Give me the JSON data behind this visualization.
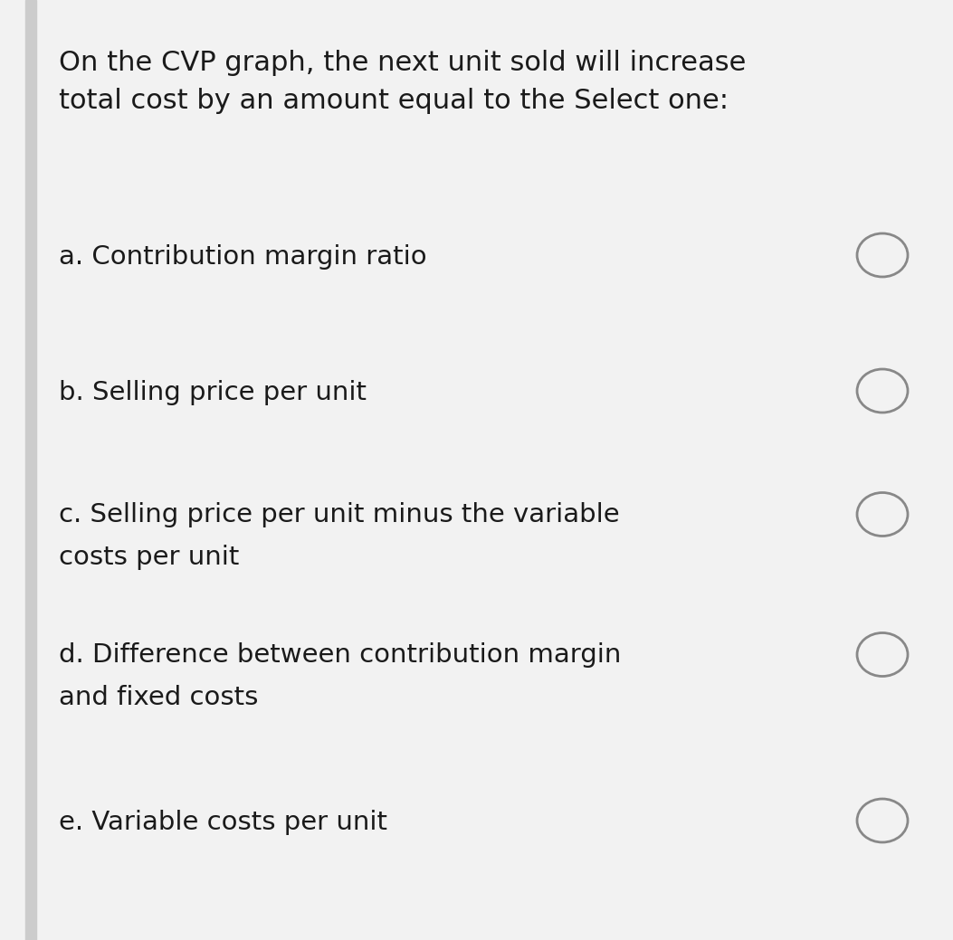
{
  "background_color": "#f2f2f2",
  "content_background": "#ffffff",
  "question_text_line1": "On the CVP graph, the next unit sold will increase",
  "question_text_line2": "total cost by an amount equal to the Select one:",
  "options": [
    {
      "label": "a.",
      "text_line1": "Contribution margin ratio",
      "text_line2": null
    },
    {
      "label": "b.",
      "text_line1": "Selling price per unit",
      "text_line2": null
    },
    {
      "label": "c.",
      "text_line1": "Selling price per unit minus the variable",
      "text_line2": "costs per unit"
    },
    {
      "label": "d.",
      "text_line1": "Difference between contribution margin",
      "text_line2": "and fixed costs"
    },
    {
      "label": "e.",
      "text_line1": "Variable costs per unit",
      "text_line2": null
    }
  ],
  "text_color": "#1a1a1a",
  "circle_color": "#888888",
  "left_bar_color": "#cccccc",
  "font_size_question": 22,
  "font_size_options": 21,
  "fig_width": 10.53,
  "fig_height": 10.39,
  "dpi": 100
}
